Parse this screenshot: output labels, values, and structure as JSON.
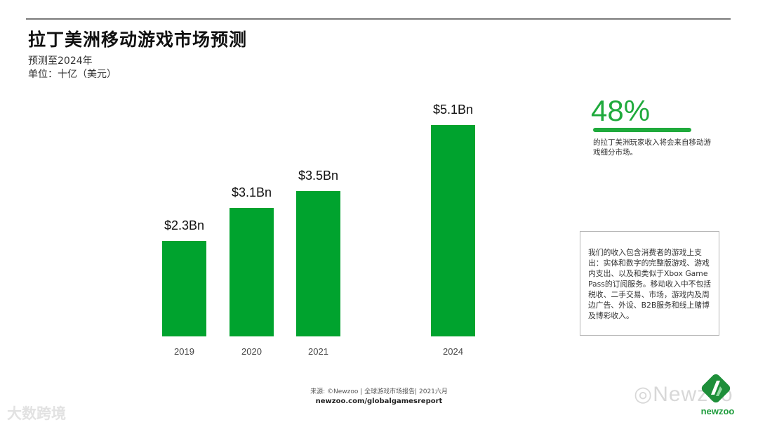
{
  "header": {
    "title": "拉丁美洲移动游戏市场预测",
    "subtitle_line1": "预测至2024年",
    "subtitle_line2": "单位：十亿（美元）"
  },
  "kpi": {
    "value": "48%",
    "description": "的拉丁美洲玩家收入将会来自移动游戏细分市场。",
    "color": "#1faa3c"
  },
  "note": {
    "text": "我们的收入包含消费者的游戏上支出：实体和数字的完整版游戏、游戏内支出、以及和类似于Xbox Game Pass的订阅服务。移动收入中不包括税收、二手交易、市场，游戏内及周边广告、外设、B2B服务和线上赌博及博彩收入。"
  },
  "footer": {
    "source": "来源: ©Newzoo | 全球游戏市场报告| 2021六月",
    "url": "newzoo.com/globalgamesreport"
  },
  "logo": {
    "text": "newzoo"
  },
  "watermarks": {
    "wechat": "Newzoo",
    "bottom_left": "大数跨境"
  },
  "chart_data": {
    "type": "bar",
    "title": "拉丁美洲移动游戏市场预测",
    "subtitle": "预测至2024年",
    "ylabel": "单位：十亿（美元）",
    "xlabel": "",
    "categories": [
      "2019",
      "2020",
      "2021",
      "2024"
    ],
    "values": [
      2.3,
      3.1,
      3.5,
      5.1
    ],
    "data_labels": [
      "$2.3Bn",
      "$3.1Bn",
      "$3.5Bn",
      "$5.1Bn"
    ],
    "bar_color": "#00a32e",
    "grid": false,
    "legend": "none",
    "ylim": [
      0,
      5.1
    ]
  }
}
